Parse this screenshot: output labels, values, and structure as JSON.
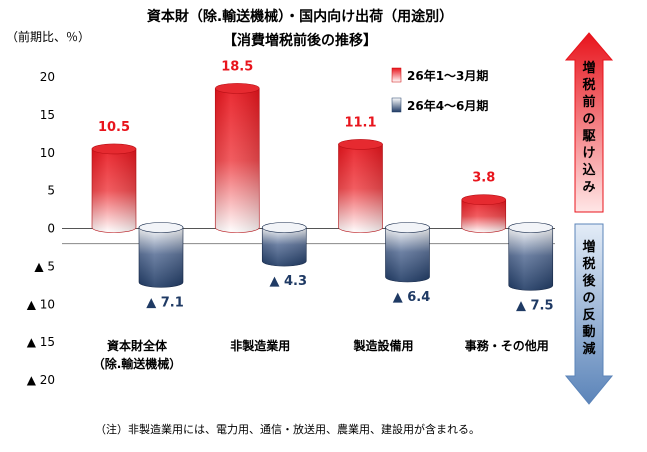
{
  "chart_data": {
    "type": "bar",
    "title": "資本財（除.輸送機械）・国内向け出荷（用途別）",
    "subtitle": "【消費増税前後の推移】",
    "unit_label": "（前期比、％）",
    "categories": [
      "資本財全体\n（除.輸送機械）",
      "非製造業用",
      "製造設備用",
      "事務・その他用"
    ],
    "series": [
      {
        "name": "26年1～3月期",
        "color": "#e8141c",
        "values": [
          10.5,
          18.5,
          11.1,
          3.8
        ],
        "labels": [
          "10.5",
          "18.5",
          "11.1",
          "3.8"
        ]
      },
      {
        "name": "26年4～6月期",
        "color": "#1f3a64",
        "values": [
          -7.1,
          -4.3,
          -6.4,
          -7.5
        ],
        "labels": [
          "▲ 7.1",
          "▲ 4.3",
          "▲ 6.4",
          "▲ 7.5"
        ]
      }
    ],
    "ylim": [
      -20,
      20
    ],
    "yticks": [
      20,
      15,
      10,
      5,
      0,
      -5,
      -10,
      -15,
      -20
    ],
    "ytick_labels": [
      "20",
      "15",
      "10",
      "5",
      "0",
      "▲ 5",
      "▲ 10",
      "▲ 15",
      "▲ 20"
    ],
    "legend_position": "top-right",
    "reference_line": -2.0,
    "side_arrows": {
      "up": {
        "text": "増税前の駆け込み",
        "color": "#e8141c"
      },
      "down": {
        "text": "増税後の反動減",
        "color": "#5b84b9"
      }
    },
    "note": "（注）非製造業用には、電力用、通信・放送用、農業用、建設用が含まれる。"
  }
}
